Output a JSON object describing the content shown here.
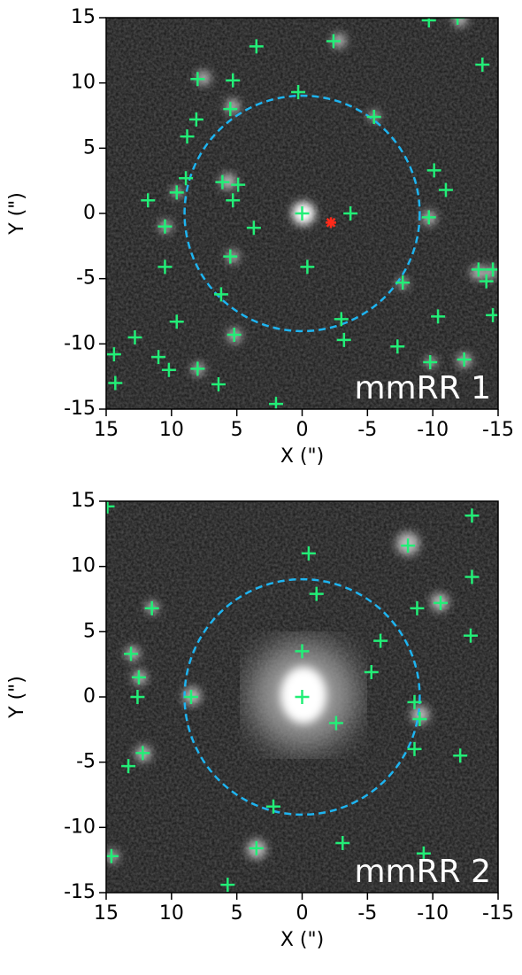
{
  "chart_data": [
    {
      "type": "scatter",
      "xlabel": "X (\")",
      "ylabel": "Y (\")",
      "annotation": "mmRR 1",
      "xlim": [
        15,
        -15
      ],
      "ylim": [
        -15,
        15
      ],
      "xticks": [
        15,
        10,
        5,
        0,
        -5,
        -10,
        -15
      ],
      "yticks": [
        -15,
        -10,
        -5,
        0,
        5,
        10,
        15
      ],
      "circle": {
        "radius": 9,
        "color": "#1eb4f0"
      },
      "series": [
        {
          "marker": "plus",
          "color": "#22ee77",
          "x": [
            -9.7,
            -11.9,
            -2.4,
            3.5,
            -13.8,
            8,
            5.3,
            0.3,
            5.5,
            -5.5,
            8.1,
            8.8,
            -10.1,
            8.9,
            6.1,
            4.9,
            9.6,
            -11,
            11.8,
            5.3,
            0,
            -3.7,
            -9.7,
            10.5,
            3.7,
            10.5,
            -0.4,
            5.5,
            -13.5,
            -14.6,
            -14.1,
            -7.7,
            6.2,
            -10.4,
            -3,
            -14.6,
            9.6,
            5.2,
            12.8,
            -3.2,
            -7.3,
            14.4,
            11,
            -9.8,
            10.2,
            8,
            -12.4,
            6.4,
            14.3,
            2
          ],
          "values": [
            14.8,
            15,
            13.2,
            12.8,
            11.4,
            10.3,
            10.2,
            9.3,
            8,
            7.4,
            7.2,
            5.9,
            3.3,
            2.7,
            2.4,
            2.2,
            1.6,
            1.8,
            1,
            1,
            0,
            0,
            -0.3,
            -1,
            -1.1,
            -4.1,
            -4.1,
            -3.3,
            -4.3,
            -4.3,
            -5.2,
            -5.3,
            -6.2,
            -7.9,
            -8.1,
            -7.8,
            -8.3,
            -9.3,
            -9.5,
            -9.7,
            -10.2,
            -10.8,
            -11,
            -11.4,
            -12,
            -11.9,
            -11.2,
            -13.1,
            -13,
            -14.6
          ]
        },
        {
          "marker": "star",
          "color": "#ff2a1a",
          "x": [
            -2.2
          ],
          "values": [
            -0.7
          ]
        }
      ]
    },
    {
      "type": "scatter",
      "xlabel": "X (\")",
      "ylabel": "Y (\")",
      "annotation": "mmRR 2",
      "xlim": [
        15,
        -15
      ],
      "ylim": [
        -15,
        15
      ],
      "xticks": [
        15,
        10,
        5,
        0,
        -5,
        -10,
        -15
      ],
      "yticks": [
        -15,
        -10,
        -5,
        0,
        5,
        10,
        15
      ],
      "circle": {
        "radius": 9,
        "color": "#1eb4f0"
      },
      "series": [
        {
          "marker": "plus",
          "color": "#22ee77",
          "x": [
            14.9,
            -0.5,
            -8.1,
            -13,
            -13,
            -1.1,
            -8.8,
            -10.6,
            -12.9,
            11.5,
            -6,
            13.1,
            0,
            -5.3,
            12.5,
            12.6,
            8.5,
            0,
            -8.6,
            -9,
            -2.6,
            -8.6,
            12.2,
            -12.1,
            13.3,
            2.2,
            -3.1,
            3.5,
            -9.3,
            14.6,
            5.7
          ],
          "values": [
            14.6,
            11,
            11.6,
            13.9,
            9.2,
            7.9,
            6.8,
            7.2,
            4.7,
            6.8,
            4.3,
            3.3,
            3.5,
            1.9,
            1.5,
            0,
            0,
            0,
            -0.4,
            -1.7,
            -2,
            -4,
            -4.3,
            -4.5,
            -5.3,
            -8.4,
            -11.2,
            -11.6,
            -12,
            -12.2,
            -14.4
          ]
        }
      ]
    }
  ]
}
